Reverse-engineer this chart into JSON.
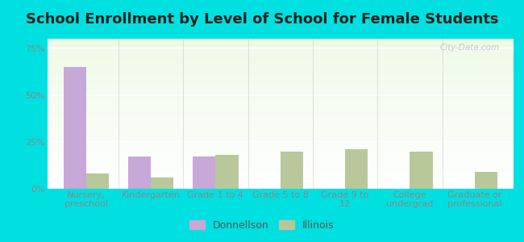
{
  "title": "School Enrollment by Level of School for Female Students",
  "categories": [
    "Nursery,\npreschool",
    "Kindergarten",
    "Grade 1 to 4",
    "Grade 5 to 8",
    "Grade 9 to\n12",
    "College\nundergrad",
    "Graduate or\nprofessional"
  ],
  "donnellson_values": [
    65,
    17,
    17,
    0,
    0,
    0,
    0
  ],
  "illinois_values": [
    8,
    6,
    18,
    20,
    21,
    20,
    9
  ],
  "donnellson_color": "#c8a8d8",
  "illinois_color": "#b8c89a",
  "background_color": "#00e0e0",
  "ylabel_ticks": [
    "0%",
    "25%",
    "50%",
    "75%"
  ],
  "ytick_values": [
    0,
    25,
    50,
    75
  ],
  "ylim": [
    0,
    80
  ],
  "bar_width": 0.35,
  "legend_labels": [
    "Donnellson",
    "Illinois"
  ],
  "watermark": "City-Data.com",
  "title_fontsize": 13,
  "tick_fontsize": 8,
  "legend_fontsize": 9
}
